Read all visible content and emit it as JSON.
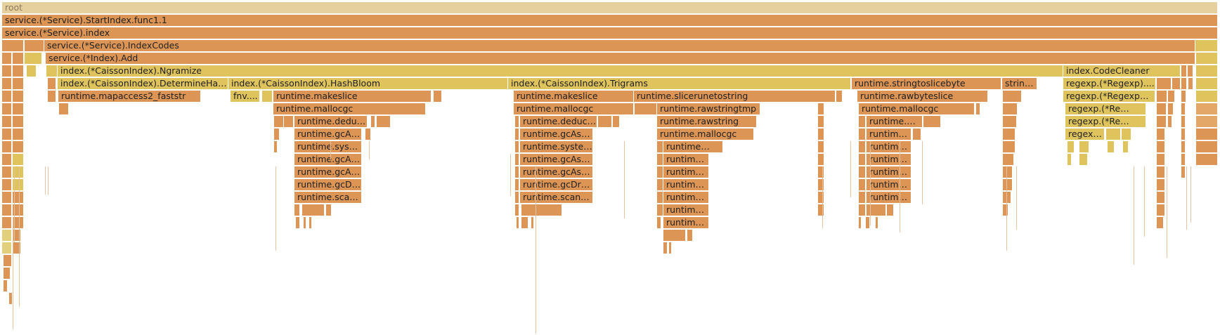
{
  "palette": {
    "root": "#e6d19e",
    "orange": "#dc9555",
    "light_orange": "#e3a868",
    "yellow": "#dfc45e",
    "yellow_light": "#e2cf7c"
  },
  "frames": {
    "root": "root",
    "start_index_func": "service.(*Service).StartIndex.func1.1",
    "service_index": "service.(*Service).index",
    "index_codes": "service.(*Service).IndexCodes",
    "index_add": "service.(*Index).Add",
    "ngramize": "index.(*CaissonIndex).Ngramize",
    "code_cleaner": "index.CodeCleaner",
    "determine_hash": "index.(*CaissonIndex).DetermineHa…",
    "hash_bloom": "index.(*CaissonIndex).HashBloom",
    "trigrams": "index.(*CaissonIndex).Trigrams",
    "stringtoslicebyte": "runtime.stringtoslicebyte",
    "strin": "strin…",
    "regexp_1": "regexp.(*Regexp)....",
    "mapaccess2": "runtime.mapaccess2_faststr",
    "fnv": "fnv....",
    "makeslice_a": "runtime.makeslice",
    "makeslice_b": "runtime.makeslice",
    "slicerunetostring": "runtime.slicerunetostring",
    "rawbyteslice": "runtime.rawbyteslice",
    "regexp_2": "regexp.(*Regexp…",
    "mallocgc_a": "runtime.mallocgc",
    "mallocgc_b": "runtime.mallocgc",
    "rawstringtmp": "runtime.rawstringtmp",
    "mallocgc_c": "runtime.mallocgc",
    "regexp_3": "regexp.(*Re…",
    "dedu_a": "runtime.dedu…",
    "deduc_b": "runtime.deduc…",
    "rawstring": "runtime.rawstring",
    "runtime_c1": "runtime.…",
    "regexp_4": "regexp.(*Re…",
    "gcas_a": "runtime.gcAs…",
    "gcass_b": "runtime.gcAss…",
    "mallocgc_d": "runtime.mallocgc",
    "runtime_c2": "runtime…",
    "regex_5": "regex…",
    "syst_a": "runtime.syst…",
    "syste_b": "runtime.syste…",
    "runtime_d1": "runtime…",
    "runtime_c3": "runtime…",
    "gca_a1": "runtime.gcA…",
    "gcass_b2": "runtime.gcAss…",
    "runtime_d2": "runtime…",
    "runtime_c4": "runtime…",
    "gca_a2": "runtime.gcA…",
    "gcass_b3": "runtime.gcAss…",
    "runtime_d3": "runtime…",
    "runtime_c5": "runtime…",
    "gcd_a": "runtime.gcD…",
    "gcdr_b": "runtime.gcDr…",
    "runtime_d4": "runtime…",
    "runtime_c6": "runtime…",
    "sca_a": "runtime.sca…",
    "scan_b": "runtime.scan…",
    "runtime_d5": "runtime…",
    "runtime_c7": "runtime…",
    "runtime_d6": "runtime…",
    "runtime_d7": "runtime…"
  }
}
